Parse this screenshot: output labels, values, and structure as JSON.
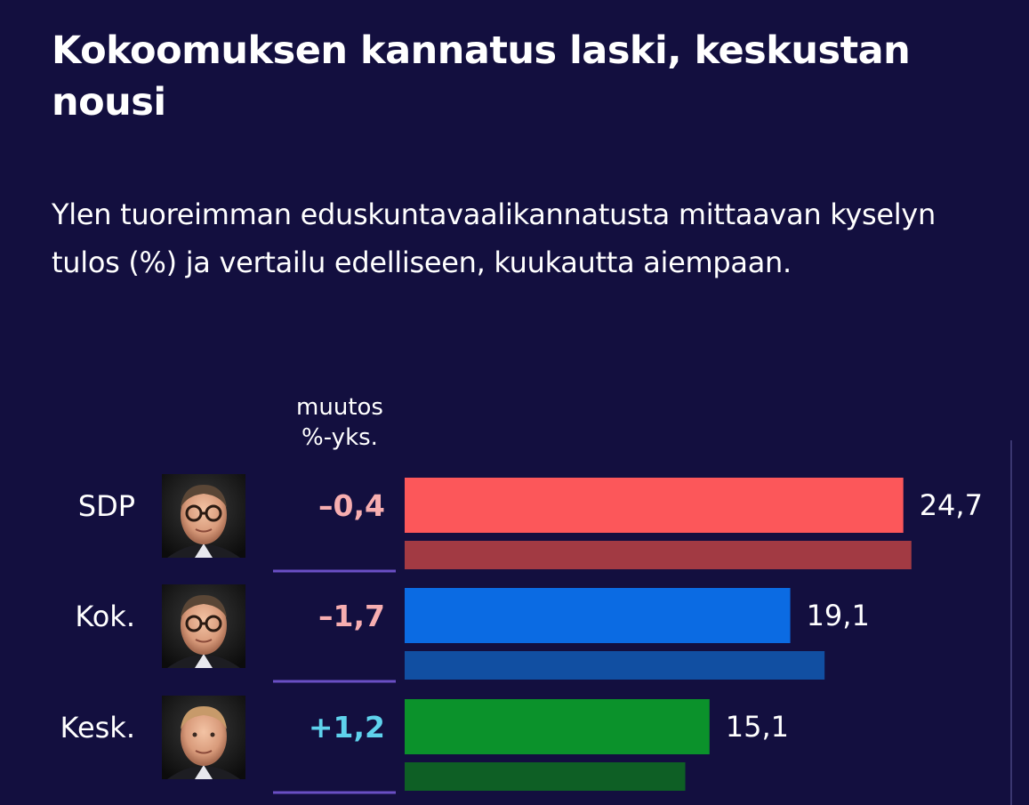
{
  "title": "Kokoomuksen kannatus laski, keskustan nousi",
  "subtitle": "Ylen tuoreimman eduskuntavaalikannatusta mittaavan kyselyn tulos (%) ja vertailu edelliseen, kuukautta aiempaan.",
  "change_header": {
    "line1": "muutos",
    "line2": "%-yks."
  },
  "colors": {
    "background": "#130f3f",
    "negative_change": "#f7aeb0",
    "positive_change": "#5fd2ec",
    "divider": "#6a4fc4"
  },
  "chart_data": {
    "type": "bar",
    "orientation": "horizontal",
    "categories": [
      "SDP",
      "Kok.",
      "Kesk."
    ],
    "series": [
      {
        "values": [
          24.7,
          19.1,
          15.1
        ],
        "colors": [
          "#fc575a",
          "#0b6be3",
          "#0b922b"
        ]
      },
      {
        "values": [
          25.1,
          20.8,
          13.9
        ],
        "colors": [
          "#a23a43",
          "#114fa2",
          "#0e5f25"
        ]
      }
    ],
    "changes": [
      "–0,4",
      "–1,7",
      "+1,2"
    ],
    "value_labels": [
      "24,7",
      "19,1",
      "15,1"
    ],
    "leaders_icons": [
      "portrait-icon",
      "portrait-icon",
      "portrait-icon"
    ]
  }
}
